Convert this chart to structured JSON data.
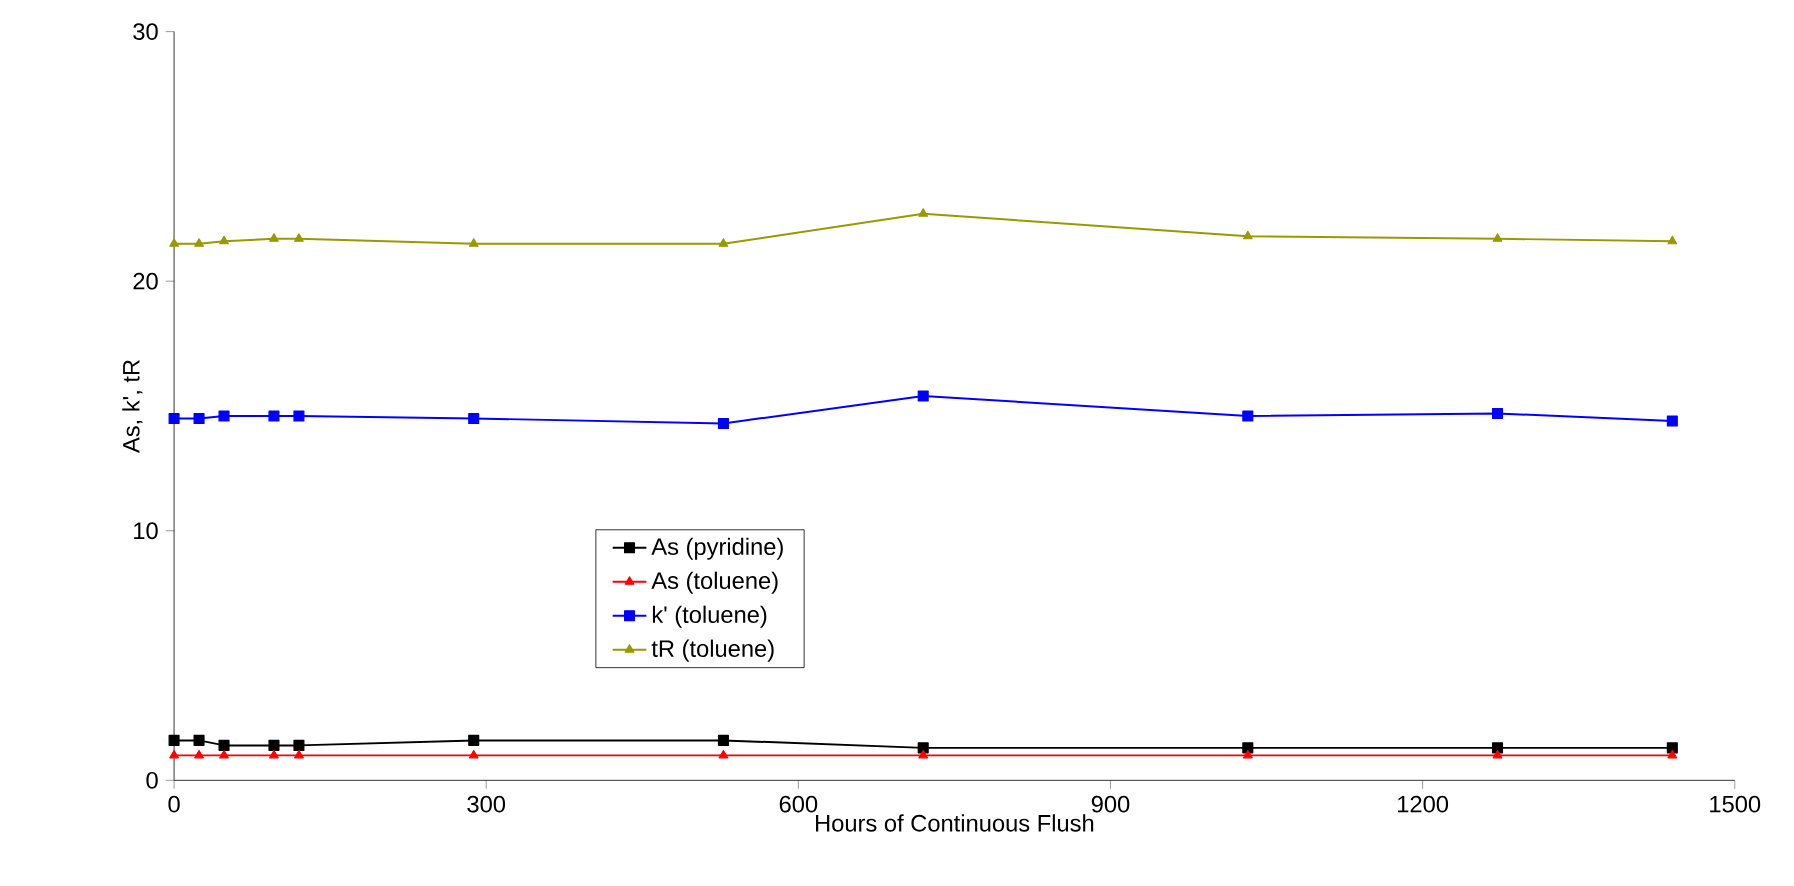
{
  "chart_data": {
    "type": "line",
    "xlabel": "Hours of Continuous Flush",
    "ylabel": "As, k', tR",
    "x": [
      0,
      24,
      48,
      96,
      120,
      288,
      528,
      720,
      1032,
      1272,
      1440
    ],
    "series": [
      {
        "name": "As (pyridine)",
        "color": "#000000",
        "marker": "square",
        "values": [
          1.6,
          1.6,
          1.4,
          1.4,
          1.4,
          1.6,
          1.6,
          1.3,
          1.3,
          1.3,
          1.3
        ]
      },
      {
        "name": "As (toluene)",
        "color": "#ff0000",
        "marker": "triangle",
        "values": [
          1.0,
          1.0,
          1.0,
          1.0,
          1.0,
          1.0,
          1.0,
          1.0,
          1.0,
          1.0,
          1.0
        ]
      },
      {
        "name": "k' (toluene)",
        "color": "#0000ff",
        "marker": "square",
        "values": [
          14.5,
          14.5,
          14.6,
          14.6,
          14.6,
          14.5,
          14.3,
          15.4,
          14.6,
          14.7,
          14.4
        ]
      },
      {
        "name": "tR (toluene)",
        "color": "#999900",
        "marker": "triangle",
        "values": [
          21.5,
          21.5,
          21.6,
          21.7,
          21.7,
          21.5,
          21.5,
          22.7,
          21.8,
          21.7,
          21.6
        ]
      }
    ],
    "xlim": [
      0,
      1500
    ],
    "xticks": [
      0,
      300,
      600,
      900,
      1200,
      1500
    ],
    "ylim": [
      0,
      30
    ],
    "yticks": [
      0,
      10,
      20,
      30
    ],
    "grid": false,
    "legend": "center"
  }
}
